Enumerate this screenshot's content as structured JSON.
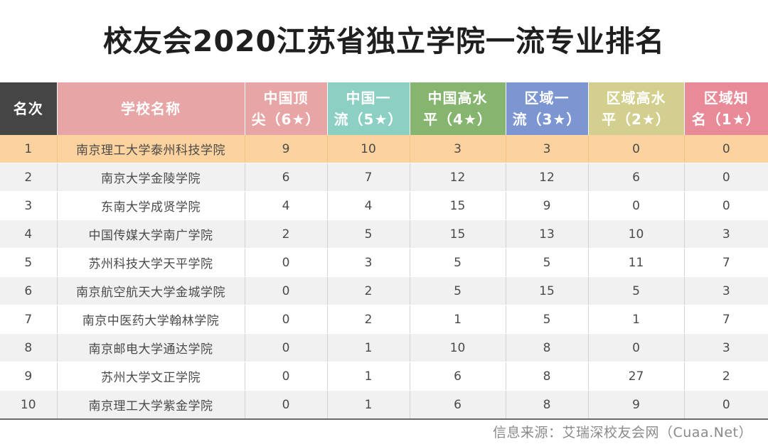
{
  "title": "校友会2020江苏省独立学院一流专业排名",
  "header": {
    "rank": "名次",
    "school": "学校名称",
    "columns": [
      {
        "line1": "中国顶",
        "line2": "尖（6★）",
        "color": "#e8a5a5"
      },
      {
        "line1": "中国一",
        "line2": "流（5★）",
        "color": "#8ccfc3"
      },
      {
        "line1": "中国高水",
        "line2": "平（4★）",
        "color": "#86b570"
      },
      {
        "line1": "区域一",
        "line2": "流（3★）",
        "color": "#7c96d1"
      },
      {
        "line1": "区域高水",
        "line2": "平（2★）",
        "color": "#d3cf8e"
      },
      {
        "line1": "区域知",
        "line2": "名（1★）",
        "color": "#e88a98"
      }
    ],
    "rank_color": "#454545",
    "school_color": "#e8a5a5"
  },
  "rows": [
    {
      "rank": "1",
      "school": "南京理工大学泰州科技学院",
      "values": [
        "9",
        "10",
        "3",
        "3",
        "0",
        "0"
      ]
    },
    {
      "rank": "2",
      "school": "南京大学金陵学院",
      "values": [
        "6",
        "7",
        "12",
        "12",
        "6",
        "0"
      ]
    },
    {
      "rank": "3",
      "school": "东南大学成贤学院",
      "values": [
        "4",
        "4",
        "15",
        "9",
        "0",
        "0"
      ]
    },
    {
      "rank": "4",
      "school": "中国传媒大学南广学院",
      "values": [
        "2",
        "5",
        "15",
        "13",
        "10",
        "3"
      ]
    },
    {
      "rank": "5",
      "school": "苏州科技大学天平学院",
      "values": [
        "0",
        "3",
        "5",
        "5",
        "11",
        "7"
      ]
    },
    {
      "rank": "6",
      "school": "南京航空航天大学金城学院",
      "values": [
        "0",
        "2",
        "5",
        "15",
        "5",
        "3"
      ]
    },
    {
      "rank": "7",
      "school": "南京中医药大学翰林学院",
      "values": [
        "0",
        "2",
        "1",
        "5",
        "1",
        "7"
      ]
    },
    {
      "rank": "8",
      "school": "南京邮电大学通达学院",
      "values": [
        "0",
        "1",
        "10",
        "8",
        "0",
        "3"
      ]
    },
    {
      "rank": "9",
      "school": "苏州大学文正学院",
      "values": [
        "0",
        "1",
        "6",
        "8",
        "27",
        "2"
      ]
    },
    {
      "rank": "10",
      "school": "南京理工大学紫金学院",
      "values": [
        "0",
        "1",
        "6",
        "8",
        "9",
        "0"
      ]
    }
  ],
  "highlight_color": "#fcd39e",
  "source": "信息来源：艾瑞深校友会网（Cuaa.Net）"
}
